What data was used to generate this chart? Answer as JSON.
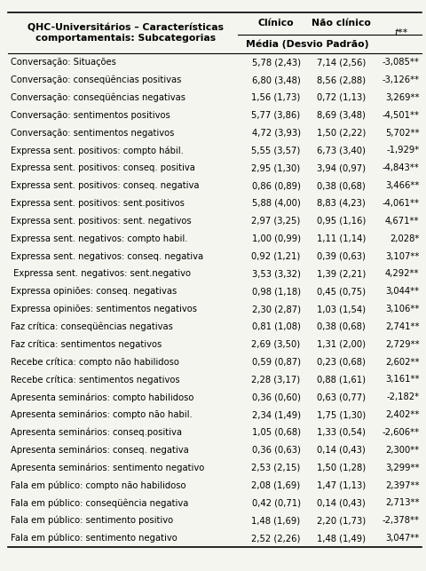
{
  "title_col1": "QHC-Universitários – Características\ncomportamentais: Subcategorias",
  "header_clinico": "Clínico",
  "header_naoclinico": "Não clínico",
  "header_t": "t**",
  "subheader": "Média (Desvio Padrão)",
  "rows": [
    [
      "Conversação: Situações",
      "5,78 (2,43)",
      "7,14 (2,56)",
      "-3,085**"
    ],
    [
      "Conversação: conseqüências positivas",
      "6,80 (3,48)",
      "8,56 (2,88)",
      "-3,126**"
    ],
    [
      "Conversação: conseqüências negativas",
      "1,56 (1,73)",
      "0,72 (1,13)",
      "3,269**"
    ],
    [
      "Conversação: sentimentos positivos",
      "5,77 (3,86)",
      "8,69 (3,48)",
      "-4,501**"
    ],
    [
      "Conversação: sentimentos negativos",
      "4,72 (3,93)",
      "1,50 (2,22)",
      "5,702**"
    ],
    [
      "Expressa sent. positivos: compto hábil.",
      "5,55 (3,57)",
      "6,73 (3,40)",
      "-1,929*"
    ],
    [
      "Expressa sent. positivos: conseq. positiva",
      "2,95 (1,30)",
      "3,94 (0,97)",
      "-4,843**"
    ],
    [
      "Expressa sent. positivos: conseq. negativa",
      "0,86 (0,89)",
      "0,38 (0,68)",
      "3,466**"
    ],
    [
      "Expressa sent. positivos: sent.positivos",
      "5,88 (4,00)",
      "8,83 (4,23)",
      "-4,061**"
    ],
    [
      "Expressa sent. positivos: sent. negativos",
      "2,97 (3,25)",
      "0,95 (1,16)",
      "4,671**"
    ],
    [
      "Expressa sent. negativos: compto habil.",
      "1,00 (0,99)",
      "1,11 (1,14)",
      "2,028*"
    ],
    [
      "Expressa sent. negativos: conseq. negativa",
      "0,92 (1,21)",
      "0,39 (0,63)",
      "3,107**"
    ],
    [
      " Expressa sent. negativos: sent.negativo",
      "3,53 (3,32)",
      "1,39 (2,21)",
      "4,292**"
    ],
    [
      "Expressa opiniões: conseq. negativas",
      "0,98 (1,18)",
      "0,45 (0,75)",
      "3,044**"
    ],
    [
      "Expressa opiniões: sentimentos negativos",
      "2,30 (2,87)",
      "1,03 (1,54)",
      "3,106**"
    ],
    [
      "Faz crítica: conseqüências negativas",
      "0,81 (1,08)",
      "0,38 (0,68)",
      "2,741**"
    ],
    [
      "Faz crítica: sentimentos negativos",
      "2,69 (3,50)",
      "1,31 (2,00)",
      "2,729**"
    ],
    [
      "Recebe crítica: compto não habilidoso",
      "0,59 (0,87)",
      "0,23 (0,68)",
      "2,602**"
    ],
    [
      "Recebe crítica: sentimentos negativos",
      "2,28 (3,17)",
      "0,88 (1,61)",
      "3,161**"
    ],
    [
      "Apresenta seminários: compto habilidoso",
      "0,36 (0,60)",
      "0,63 (0,77)",
      "-2,182*"
    ],
    [
      "Apresenta seminários: compto não habil.",
      "2,34 (1,49)",
      "1,75 (1,30)",
      "2,402**"
    ],
    [
      "Apresenta seminários: conseq.positiva",
      "1,05 (0,68)",
      "1,33 (0,54)",
      "-2,606**"
    ],
    [
      "Apresenta seminários: conseq. negativa",
      "0,36 (0,63)",
      "0,14 (0,43)",
      "2,300**"
    ],
    [
      "Apresenta seminários: sentimento negativo",
      "2,53 (2,15)",
      "1,50 (1,28)",
      "3,299**"
    ],
    [
      "Fala em público: compto não habilidoso",
      "2,08 (1,69)",
      "1,47 (1,13)",
      "2,397**"
    ],
    [
      "Fala em público: conseqüência negativa",
      "0,42 (0,71)",
      "0,14 (0,43)",
      "2,713**"
    ],
    [
      "Fala em público: sentimento positivo",
      "1,48 (1,69)",
      "2,20 (1,73)",
      "-2,378**"
    ],
    [
      "Fala em público: sentimento negativo",
      "2,52 (2,26)",
      "1,48 (1,49)",
      "3,047**"
    ]
  ],
  "bg_color": "#f5f5f0",
  "header_bg": "#ffffff",
  "text_color": "#000000",
  "font_size": 7.2,
  "header_font_size": 7.8
}
